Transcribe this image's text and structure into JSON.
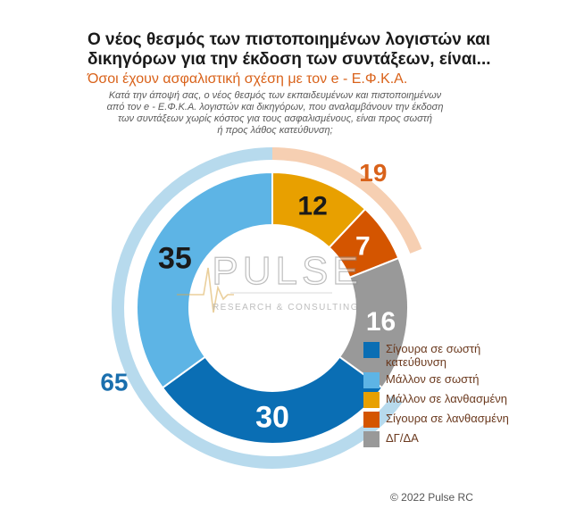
{
  "title_lines": [
    "Ο νέος θεσμός των πιστοποιημένων λογιστών και",
    "δικηγόρων για την έκδοση των συντάξεων, είναι..."
  ],
  "subtitle": "Όσοι έχουν ασφαλιστική σχέση με τον e - Ε.Φ.Κ.Α.",
  "note_lines": [
    "Κατά την άποψή σας, ο νέος θεσμός των εκπαιδευμένων και πιστοποιημένων",
    "από τον e - Ε.Φ.Κ.Α. λογιστών και δικηγόρων, που αναλαμβάνουν την έκδοση",
    "των συντάξεων χωρίς κόστος για τους ασφαλισμένους, είναι προς σωστή",
    "ή προς λάθος κατεύθυνση;"
  ],
  "watermark": {
    "name": "PULSE",
    "tagline": "RESEARCH & CONSULTING"
  },
  "credit": "© 2022 Pulse RC",
  "chart_data": {
    "type": "pie",
    "variant": "donut",
    "start": "top, clockwise",
    "slices": [
      {
        "label": "Μάλλον σε λανθασμένη",
        "value": 12,
        "color": "#e8a000",
        "label_color": "#1a1a1a"
      },
      {
        "label": "Σίγουρα σε λανθασμένη",
        "value": 7,
        "color": "#d45500",
        "label_color": "#ffffff"
      },
      {
        "label": "ΔΓ/ΔΑ",
        "value": 16,
        "color": "#999999",
        "label_color": "#ffffff"
      },
      {
        "label": "Σίγουρα σε σωστή κατεύθυνση",
        "value": 30,
        "color": "#0a6eb4",
        "label_color": "#ffffff"
      },
      {
        "label": "Μάλλον σε σωστή",
        "value": 35,
        "color": "#5db4e5",
        "label_color": "#1a1a1a"
      }
    ],
    "legend_order": [
      3,
      4,
      0,
      1,
      2
    ],
    "groups": [
      {
        "value": 19,
        "covers": [
          0,
          1
        ],
        "color": "#f6cfb2",
        "label_color": "#d9621a"
      },
      {
        "value": 65,
        "covers": [
          3,
          4
        ],
        "color": "#b7daed",
        "label_color": "#1a6fae"
      }
    ],
    "legend_placement": "bottom-right"
  }
}
